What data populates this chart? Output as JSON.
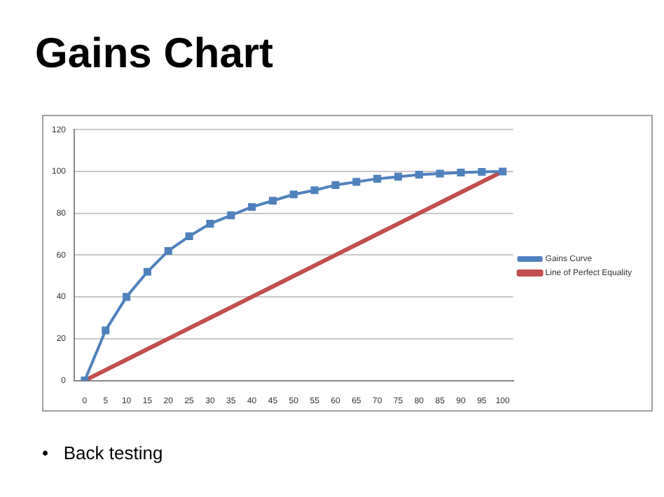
{
  "chart_data": {
    "type": "line",
    "title": "Gains Chart",
    "annotations": [
      "•   Back testing"
    ],
    "categories": [
      "0",
      "5",
      "10",
      "15",
      "20",
      "25",
      "30",
      "35",
      "40",
      "45",
      "50",
      "55",
      "60",
      "65",
      "70",
      "75",
      "80",
      "85",
      "90",
      "95",
      "100"
    ],
    "series": [
      {
        "name": "Gains Curve",
        "color": "#4f81bd",
        "marker": "square",
        "values": [
          0,
          24,
          40,
          52,
          62,
          69,
          75,
          79,
          83,
          86,
          89,
          91,
          93.5,
          95,
          96.5,
          97.5,
          98.5,
          99,
          99.5,
          99.8,
          100
        ]
      },
      {
        "name": "Line of Perfect Equality",
        "color": "#c0504d",
        "marker": "none",
        "values": [
          0,
          5,
          10,
          15,
          20,
          25,
          30,
          35,
          40,
          45,
          50,
          55,
          60,
          65,
          70,
          75,
          80,
          85,
          90,
          95,
          100
        ]
      }
    ],
    "ylim": [
      0,
      120
    ],
    "yticks": [
      0,
      20,
      40,
      60,
      80,
      100,
      120
    ],
    "grid": "y",
    "legend": "right",
    "line_style": "solid"
  }
}
